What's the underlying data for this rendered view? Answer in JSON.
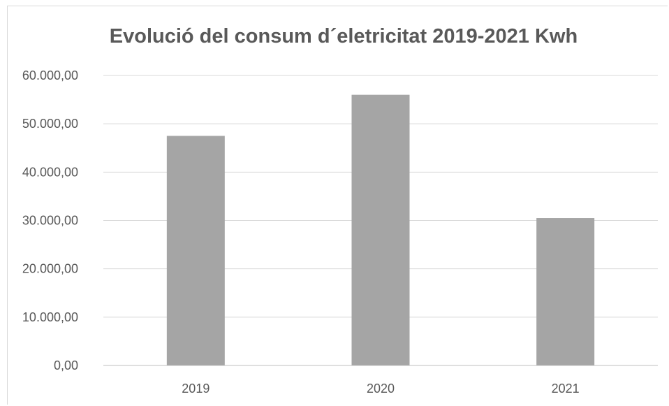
{
  "chart_data": {
    "type": "bar",
    "title": "Evolució del consum d´eletricitat 2019-2021 Kwh",
    "categories": [
      "2019",
      "2020",
      "2021"
    ],
    "values": [
      47500,
      56000,
      30500
    ],
    "ylim": [
      0,
      60000
    ],
    "y_ticks": [
      0,
      10000,
      20000,
      30000,
      40000,
      50000,
      60000
    ],
    "y_tick_labels": [
      "0,00",
      "10.000,00",
      "20.000,00",
      "30.000,00",
      "40.000,00",
      "50.000,00",
      "60.000,00"
    ],
    "xlabel": "",
    "ylabel": "",
    "grid": true,
    "legend": "none",
    "colors": {
      "bar": "#a5a5a5",
      "grid": "#d9d9d9",
      "axis": "#bfbfbf",
      "text": "#595959"
    }
  }
}
